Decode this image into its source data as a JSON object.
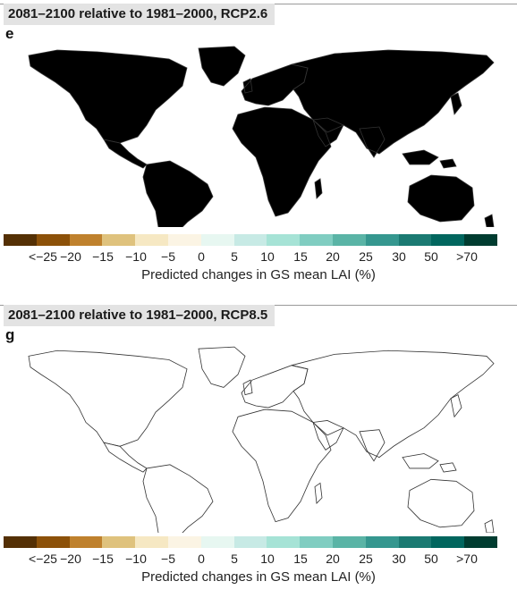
{
  "colors": {
    "scale": [
      "#543005",
      "#8c5109",
      "#bf812d",
      "#dfc27d",
      "#f6e8c3",
      "#fbf4e4",
      "#e7f7f1",
      "#c7eae5",
      "#a6e3d6",
      "#80cdc1",
      "#5ab4a6",
      "#35978f",
      "#1b7a72",
      "#01665e",
      "#003c30"
    ],
    "land_neutral": "#ffffff",
    "coast": "#333333",
    "title_bg": "#e3e3e3"
  },
  "panels": [
    {
      "title": "2081–2100 relative to 1981–2000, RCP2.6",
      "letter": "e",
      "scenario": "RCP2.6",
      "colorbar": {
        "tick_labels": [
          "<−25",
          "−20",
          "−15",
          "−10",
          "−5",
          "0",
          "5",
          "10",
          "15",
          "20",
          "25",
          "30",
          "50",
          ">70"
        ],
        "label": "Predicted changes in GS mean LAI (%)"
      }
    },
    {
      "title": "2081–2100 relative to 1981–2000, RCP8.5",
      "letter": "g",
      "scenario": "RCP8.5",
      "colorbar": {
        "tick_labels": [
          "<−25",
          "−20",
          "−15",
          "−10",
          "−5",
          "0",
          "5",
          "10",
          "15",
          "20",
          "25",
          "30",
          "50",
          ">70"
        ],
        "label": "Predicted changes in GS mean LAI (%)"
      }
    }
  ]
}
